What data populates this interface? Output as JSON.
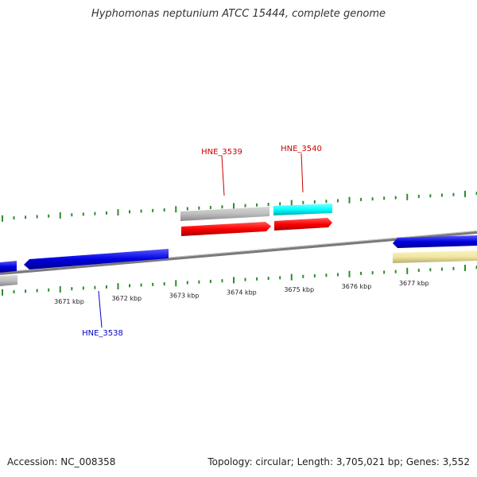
{
  "title": "Hyphomonas neptunium ATCC 15444, complete genome",
  "accession_label": "Accession: NC_008358",
  "summary_label": "Topology: circular; Length: 3,705,021 bp; Genes: 3,552",
  "colors": {
    "backbone": "#8a8a8a",
    "tick": "#2e8b2e",
    "forward_cds": "#ff0000",
    "reverse_cds": "#0000e0",
    "gray_feature": "#bdbdbd",
    "cyan_feature": "#00ffff",
    "yellow_feature": "#f0e6a0",
    "label_forward": "#cc0000",
    "label_reverse": "#0000cc"
  },
  "axis_labels": [
    "3671 kbp",
    "3672 kbp",
    "3673 kbp",
    "3674 kbp",
    "3675 kbp",
    "3676 kbp",
    "3677 kbp"
  ],
  "gene_labels": [
    {
      "id": "HNE_3539",
      "strand": "forward"
    },
    {
      "id": "HNE_3540",
      "strand": "forward"
    },
    {
      "id": "HNE_3538",
      "strand": "reverse"
    }
  ]
}
